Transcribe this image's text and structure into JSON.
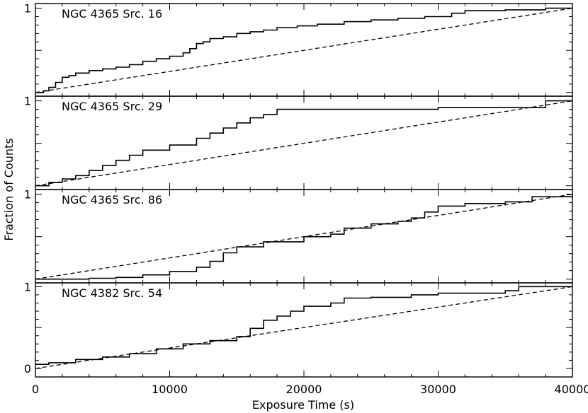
{
  "chart_data": {
    "type": "line",
    "xlabel": "Exposure Time (s)",
    "ylabel": "Fraction of Counts",
    "xlim": [
      0,
      40000
    ],
    "xticks": [
      0,
      10000,
      20000,
      30000,
      40000
    ],
    "xtick_labels": [
      "0",
      "10000",
      "20000",
      "30000",
      "40000"
    ],
    "grid": false,
    "panels": [
      {
        "label": "NGC 4365 Src. 16",
        "ytick_labels": [
          {
            "value": 1,
            "text": "1"
          }
        ],
        "series": [
          {
            "style": "solid",
            "x": [
              0,
              600,
              1000,
              1500,
              2000,
              2500,
              3000,
              4000,
              5000,
              6000,
              7000,
              8000,
              9000,
              10000,
              11000,
              11500,
              12000,
              12500,
              13000,
              14000,
              15000,
              16000,
              17000,
              18000,
              19500,
              21000,
              23000,
              25000,
              27000,
              29000,
              31000,
              32000,
              35000,
              38000,
              40000
            ],
            "y": [
              0.0,
              0.02,
              0.06,
              0.12,
              0.18,
              0.2,
              0.23,
              0.26,
              0.28,
              0.3,
              0.33,
              0.37,
              0.4,
              0.43,
              0.47,
              0.52,
              0.58,
              0.6,
              0.64,
              0.66,
              0.7,
              0.72,
              0.74,
              0.77,
              0.79,
              0.81,
              0.84,
              0.86,
              0.88,
              0.9,
              0.94,
              0.97,
              0.98,
              1.0,
              1.0
            ]
          },
          {
            "style": "dashed",
            "x": [
              0,
              40000
            ],
            "y": [
              0,
              1
            ]
          }
        ]
      },
      {
        "label": "NGC 4365 Src. 29",
        "ytick_labels": [
          {
            "value": 1,
            "text": "1"
          }
        ],
        "series": [
          {
            "style": "solid",
            "x": [
              0,
              1000,
              2000,
              3000,
              4000,
              5000,
              6000,
              7000,
              8000,
              10000,
              12000,
              13000,
              14000,
              15000,
              16000,
              17000,
              18000,
              30000,
              38000,
              40000
            ],
            "y": [
              0.0,
              0.04,
              0.08,
              0.12,
              0.18,
              0.24,
              0.3,
              0.36,
              0.42,
              0.48,
              0.56,
              0.62,
              0.68,
              0.74,
              0.8,
              0.84,
              0.9,
              0.92,
              1.0,
              1.0
            ]
          },
          {
            "style": "dashed",
            "x": [
              0,
              40000
            ],
            "y": [
              0,
              1
            ]
          }
        ]
      },
      {
        "label": "NGC 4365 Src. 86",
        "ytick_labels": [
          {
            "value": 1,
            "text": "1"
          }
        ],
        "series": [
          {
            "style": "solid",
            "x": [
              0,
              2000,
              4000,
              6000,
              8000,
              10000,
              12000,
              13000,
              14000,
              15000,
              17000,
              20000,
              22000,
              23000,
              25000,
              27000,
              28000,
              29000,
              30000,
              32000,
              35000,
              37000,
              40000
            ],
            "y": [
              0.0,
              0.0,
              0.01,
              0.02,
              0.05,
              0.09,
              0.14,
              0.21,
              0.31,
              0.38,
              0.44,
              0.5,
              0.53,
              0.6,
              0.65,
              0.68,
              0.72,
              0.79,
              0.86,
              0.89,
              0.91,
              0.97,
              1.0
            ]
          },
          {
            "style": "dashed",
            "x": [
              0,
              40000
            ],
            "y": [
              0,
              1
            ]
          }
        ]
      },
      {
        "label": "NGC 4382 Src. 54",
        "ytick_labels": [
          {
            "value": 1,
            "text": "1"
          },
          {
            "value": 0,
            "text": "0"
          }
        ],
        "series": [
          {
            "style": "solid",
            "x": [
              0,
              1000,
              3000,
              5000,
              7000,
              9000,
              11000,
              13000,
              15000,
              16000,
              17000,
              18000,
              19000,
              20000,
              22000,
              23000,
              25000,
              28000,
              30000,
              35000,
              36000,
              40000
            ],
            "y": [
              0.05,
              0.07,
              0.11,
              0.14,
              0.18,
              0.24,
              0.3,
              0.34,
              0.39,
              0.49,
              0.59,
              0.64,
              0.7,
              0.76,
              0.8,
              0.86,
              0.87,
              0.9,
              0.92,
              0.95,
              1.0,
              1.0
            ]
          },
          {
            "style": "dashed",
            "x": [
              0,
              40000
            ],
            "y": [
              0,
              1
            ]
          }
        ]
      }
    ]
  }
}
